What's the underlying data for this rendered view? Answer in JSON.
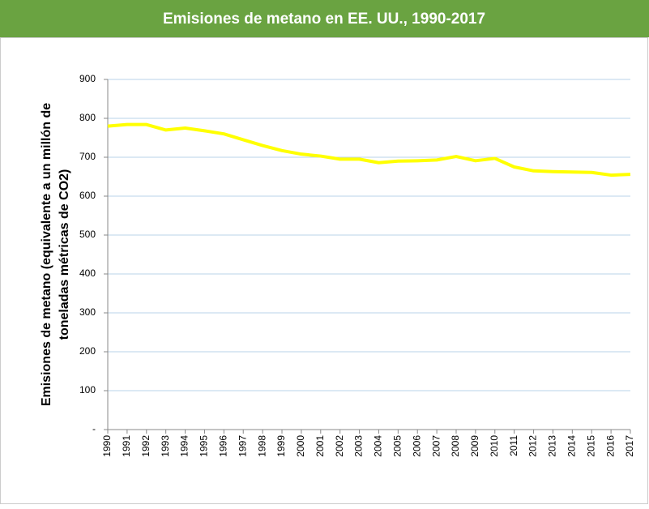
{
  "chart_data": {
    "type": "line",
    "title": "Emisiones de metano en EE. UU., 1990-2017",
    "ylabel": [
      "Emisiones de metano (equivalente a un millón de",
      "toneladas métricas de CO2)"
    ],
    "x": [
      1990,
      1991,
      1992,
      1993,
      1994,
      1995,
      1996,
      1997,
      1998,
      1999,
      2000,
      2001,
      2002,
      2003,
      2004,
      2005,
      2006,
      2007,
      2008,
      2009,
      2010,
      2011,
      2012,
      2013,
      2014,
      2015,
      2016,
      2017
    ],
    "series": [
      {
        "color": "#ffff00",
        "values": [
          780,
          784,
          784,
          770,
          775,
          768,
          760,
          745,
          730,
          717,
          708,
          703,
          695,
          695,
          686,
          690,
          691,
          693,
          702,
          691,
          697,
          675,
          665,
          663,
          662,
          661,
          654,
          656
        ]
      }
    ],
    "xlim": [
      1990,
      2017
    ],
    "xticks": [
      1990,
      1991,
      1992,
      1993,
      1994,
      1995,
      1996,
      1997,
      1998,
      1999,
      2000,
      2001,
      2002,
      2003,
      2004,
      2005,
      2006,
      2007,
      2008,
      2009,
      2010,
      2011,
      2012,
      2013,
      2014,
      2015,
      2016,
      2017
    ],
    "ylim": [
      0,
      900
    ],
    "yticks": [
      {
        "value": 0,
        "label": "-"
      },
      100,
      200,
      300,
      400,
      500,
      600,
      700,
      800,
      900
    ],
    "grid": true,
    "header_color": "#6aa341"
  }
}
